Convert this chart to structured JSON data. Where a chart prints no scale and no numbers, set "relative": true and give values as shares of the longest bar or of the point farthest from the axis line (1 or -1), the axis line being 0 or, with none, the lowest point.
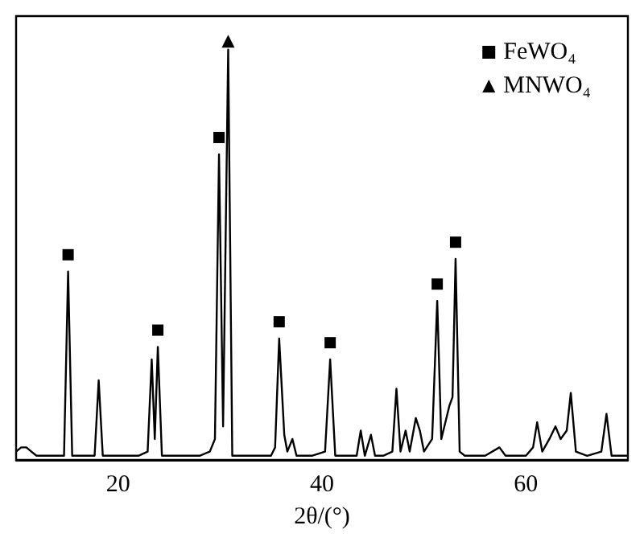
{
  "chart_data": {
    "type": "line",
    "relative": true,
    "xlabel": "2θ/(°)",
    "xlim": [
      10,
      70
    ],
    "xticks": [
      20,
      40,
      60
    ],
    "tick_labels": "x",
    "grid": false,
    "legend": "top right",
    "series": [
      {
        "color": "#000000",
        "marker": "none",
        "line_style": "solid",
        "x": [
          10,
          10.5,
          11,
          11.5,
          12,
          13,
          14,
          14.7,
          15.1,
          15.5,
          16,
          17,
          17.7,
          18.1,
          18.5,
          19,
          20,
          21,
          22,
          22.9,
          23.3,
          23.6,
          23.9,
          24.3,
          25,
          26,
          27,
          28,
          29,
          29.5,
          29.9,
          30.3,
          30.8,
          31.2,
          32,
          33,
          34,
          35,
          35.4,
          35.8,
          36.3,
          36.6,
          37.1,
          37.5,
          38,
          39,
          40.3,
          40.8,
          41.3,
          42,
          43.4,
          43.8,
          44.2,
          44.8,
          45.2,
          46,
          46.9,
          47.3,
          47.7,
          48.2,
          48.6,
          49.2,
          49.6,
          50,
          50.8,
          51.3,
          51.7,
          52.2,
          52.5,
          52.8,
          53.1,
          53.5,
          54,
          55,
          56,
          57.4,
          58,
          59,
          60,
          60.7,
          61.1,
          61.6,
          62.3,
          62.9,
          63.4,
          64,
          64.4,
          64.9,
          66,
          67.4,
          67.9,
          68.4,
          69,
          70
        ],
        "values": [
          0.02,
          0.03,
          0.03,
          0.02,
          0.01,
          0.01,
          0.01,
          0.01,
          0.45,
          0.01,
          0.01,
          0.01,
          0.01,
          0.19,
          0.01,
          0.01,
          0.01,
          0.01,
          0.01,
          0.02,
          0.24,
          0.05,
          0.27,
          0.01,
          0.01,
          0.01,
          0.01,
          0.01,
          0.02,
          0.05,
          0.73,
          0.08,
          0.98,
          0.01,
          0.01,
          0.01,
          0.01,
          0.01,
          0.03,
          0.29,
          0.06,
          0.02,
          0.05,
          0.01,
          0.01,
          0.01,
          0.02,
          0.24,
          0.01,
          0.01,
          0.01,
          0.07,
          0.01,
          0.06,
          0.01,
          0.01,
          0.02,
          0.17,
          0.02,
          0.07,
          0.02,
          0.1,
          0.07,
          0.02,
          0.05,
          0.38,
          0.05,
          0.1,
          0.13,
          0.15,
          0.48,
          0.02,
          0.01,
          0.01,
          0.01,
          0.03,
          0.01,
          0.01,
          0.01,
          0.03,
          0.09,
          0.02,
          0.05,
          0.08,
          0.05,
          0.07,
          0.16,
          0.02,
          0.01,
          0.02,
          0.11,
          0.01,
          0.01,
          0.01
        ]
      },
      {
        "type": "scatter",
        "name": "FeWO₄",
        "color": "#000000",
        "marker": "square",
        "x": [
          15.1,
          23.9,
          29.9,
          35.8,
          40.8,
          51.3,
          53.1
        ],
        "values": [
          0.49,
          0.31,
          0.77,
          0.33,
          0.28,
          0.42,
          0.52
        ]
      },
      {
        "type": "scatter",
        "name": "MNWO₄",
        "color": "#000000",
        "marker": "triangle",
        "x": [
          30.8
        ],
        "values": [
          1.0
        ]
      }
    ]
  }
}
